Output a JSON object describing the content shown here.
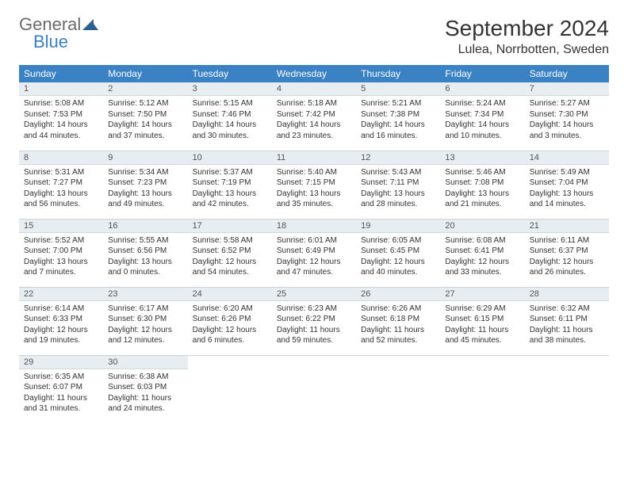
{
  "branding": {
    "logo_word1": "General",
    "logo_word2": "Blue"
  },
  "title": "September 2024",
  "location": "Lulea, Norrbotten, Sweden",
  "colors": {
    "header_bg": "#3b82c4",
    "header_text": "#ffffff",
    "daynum_bg": "#e7edf1",
    "border": "#c8d4dc",
    "logo_gray": "#6b6b6b",
    "logo_blue": "#3b7fc4"
  },
  "weekdays": [
    "Sunday",
    "Monday",
    "Tuesday",
    "Wednesday",
    "Thursday",
    "Friday",
    "Saturday"
  ],
  "weeks": [
    [
      {
        "day": "1",
        "sunrise": "Sunrise: 5:08 AM",
        "sunset": "Sunset: 7:53 PM",
        "daylight": "Daylight: 14 hours and 44 minutes."
      },
      {
        "day": "2",
        "sunrise": "Sunrise: 5:12 AM",
        "sunset": "Sunset: 7:50 PM",
        "daylight": "Daylight: 14 hours and 37 minutes."
      },
      {
        "day": "3",
        "sunrise": "Sunrise: 5:15 AM",
        "sunset": "Sunset: 7:46 PM",
        "daylight": "Daylight: 14 hours and 30 minutes."
      },
      {
        "day": "4",
        "sunrise": "Sunrise: 5:18 AM",
        "sunset": "Sunset: 7:42 PM",
        "daylight": "Daylight: 14 hours and 23 minutes."
      },
      {
        "day": "5",
        "sunrise": "Sunrise: 5:21 AM",
        "sunset": "Sunset: 7:38 PM",
        "daylight": "Daylight: 14 hours and 16 minutes."
      },
      {
        "day": "6",
        "sunrise": "Sunrise: 5:24 AM",
        "sunset": "Sunset: 7:34 PM",
        "daylight": "Daylight: 14 hours and 10 minutes."
      },
      {
        "day": "7",
        "sunrise": "Sunrise: 5:27 AM",
        "sunset": "Sunset: 7:30 PM",
        "daylight": "Daylight: 14 hours and 3 minutes."
      }
    ],
    [
      {
        "day": "8",
        "sunrise": "Sunrise: 5:31 AM",
        "sunset": "Sunset: 7:27 PM",
        "daylight": "Daylight: 13 hours and 56 minutes."
      },
      {
        "day": "9",
        "sunrise": "Sunrise: 5:34 AM",
        "sunset": "Sunset: 7:23 PM",
        "daylight": "Daylight: 13 hours and 49 minutes."
      },
      {
        "day": "10",
        "sunrise": "Sunrise: 5:37 AM",
        "sunset": "Sunset: 7:19 PM",
        "daylight": "Daylight: 13 hours and 42 minutes."
      },
      {
        "day": "11",
        "sunrise": "Sunrise: 5:40 AM",
        "sunset": "Sunset: 7:15 PM",
        "daylight": "Daylight: 13 hours and 35 minutes."
      },
      {
        "day": "12",
        "sunrise": "Sunrise: 5:43 AM",
        "sunset": "Sunset: 7:11 PM",
        "daylight": "Daylight: 13 hours and 28 minutes."
      },
      {
        "day": "13",
        "sunrise": "Sunrise: 5:46 AM",
        "sunset": "Sunset: 7:08 PM",
        "daylight": "Daylight: 13 hours and 21 minutes."
      },
      {
        "day": "14",
        "sunrise": "Sunrise: 5:49 AM",
        "sunset": "Sunset: 7:04 PM",
        "daylight": "Daylight: 13 hours and 14 minutes."
      }
    ],
    [
      {
        "day": "15",
        "sunrise": "Sunrise: 5:52 AM",
        "sunset": "Sunset: 7:00 PM",
        "daylight": "Daylight: 13 hours and 7 minutes."
      },
      {
        "day": "16",
        "sunrise": "Sunrise: 5:55 AM",
        "sunset": "Sunset: 6:56 PM",
        "daylight": "Daylight: 13 hours and 0 minutes."
      },
      {
        "day": "17",
        "sunrise": "Sunrise: 5:58 AM",
        "sunset": "Sunset: 6:52 PM",
        "daylight": "Daylight: 12 hours and 54 minutes."
      },
      {
        "day": "18",
        "sunrise": "Sunrise: 6:01 AM",
        "sunset": "Sunset: 6:49 PM",
        "daylight": "Daylight: 12 hours and 47 minutes."
      },
      {
        "day": "19",
        "sunrise": "Sunrise: 6:05 AM",
        "sunset": "Sunset: 6:45 PM",
        "daylight": "Daylight: 12 hours and 40 minutes."
      },
      {
        "day": "20",
        "sunrise": "Sunrise: 6:08 AM",
        "sunset": "Sunset: 6:41 PM",
        "daylight": "Daylight: 12 hours and 33 minutes."
      },
      {
        "day": "21",
        "sunrise": "Sunrise: 6:11 AM",
        "sunset": "Sunset: 6:37 PM",
        "daylight": "Daylight: 12 hours and 26 minutes."
      }
    ],
    [
      {
        "day": "22",
        "sunrise": "Sunrise: 6:14 AM",
        "sunset": "Sunset: 6:33 PM",
        "daylight": "Daylight: 12 hours and 19 minutes."
      },
      {
        "day": "23",
        "sunrise": "Sunrise: 6:17 AM",
        "sunset": "Sunset: 6:30 PM",
        "daylight": "Daylight: 12 hours and 12 minutes."
      },
      {
        "day": "24",
        "sunrise": "Sunrise: 6:20 AM",
        "sunset": "Sunset: 6:26 PM",
        "daylight": "Daylight: 12 hours and 6 minutes."
      },
      {
        "day": "25",
        "sunrise": "Sunrise: 6:23 AM",
        "sunset": "Sunset: 6:22 PM",
        "daylight": "Daylight: 11 hours and 59 minutes."
      },
      {
        "day": "26",
        "sunrise": "Sunrise: 6:26 AM",
        "sunset": "Sunset: 6:18 PM",
        "daylight": "Daylight: 11 hours and 52 minutes."
      },
      {
        "day": "27",
        "sunrise": "Sunrise: 6:29 AM",
        "sunset": "Sunset: 6:15 PM",
        "daylight": "Daylight: 11 hours and 45 minutes."
      },
      {
        "day": "28",
        "sunrise": "Sunrise: 6:32 AM",
        "sunset": "Sunset: 6:11 PM",
        "daylight": "Daylight: 11 hours and 38 minutes."
      }
    ],
    [
      {
        "day": "29",
        "sunrise": "Sunrise: 6:35 AM",
        "sunset": "Sunset: 6:07 PM",
        "daylight": "Daylight: 11 hours and 31 minutes."
      },
      {
        "day": "30",
        "sunrise": "Sunrise: 6:38 AM",
        "sunset": "Sunset: 6:03 PM",
        "daylight": "Daylight: 11 hours and 24 minutes."
      },
      null,
      null,
      null,
      null,
      null
    ]
  ]
}
